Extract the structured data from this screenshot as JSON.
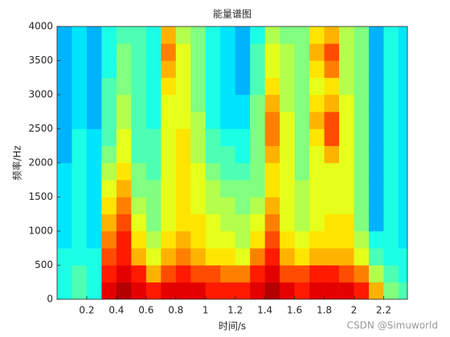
{
  "chart_data": {
    "type": "heatmap",
    "title": "能量谱图",
    "x_label": "时间/s",
    "y_label": "频率/Hz",
    "watermark": "CSDN @Simuworld",
    "colormap": "jet",
    "zlim": [
      0,
      10
    ],
    "xlim": [
      0,
      2.36
    ],
    "ylim": [
      0,
      4000
    ],
    "xticks": [
      0.2,
      0.4,
      0.6,
      0.8,
      1,
      1.2,
      1.4,
      1.6,
      1.8,
      2,
      2.2
    ],
    "yticks": [
      0,
      500,
      1000,
      1500,
      2000,
      2500,
      3000,
      3500,
      4000
    ],
    "x": [
      0.05,
      0.15,
      0.25,
      0.35,
      0.45,
      0.55,
      0.65,
      0.75,
      0.85,
      0.95,
      1.05,
      1.15,
      1.25,
      1.35,
      1.45,
      1.55,
      1.65,
      1.75,
      1.85,
      1.95,
      2.05,
      2.15,
      2.25,
      2.35
    ],
    "y": [
      125,
      375,
      625,
      875,
      1125,
      1375,
      1625,
      1875,
      2125,
      2375,
      2625,
      2875,
      3125,
      3375,
      3625,
      3875
    ],
    "z": [
      [
        4,
        4,
        4,
        3.5,
        3.5,
        3.5,
        3.5,
        3.5,
        3,
        3,
        3,
        3,
        3,
        3,
        3,
        3
      ],
      [
        4.5,
        4.5,
        4,
        4,
        4,
        4,
        4,
        4,
        4,
        4,
        3.5,
        3.5,
        3.5,
        3.5,
        3.5,
        3.5
      ],
      [
        4,
        4,
        4,
        3.5,
        3.5,
        3.5,
        3.5,
        3.5,
        3.5,
        3.5,
        3,
        3,
        3,
        3,
        3,
        3
      ],
      [
        9,
        8.5,
        8,
        7.5,
        7,
        6.5,
        6,
        5.5,
        5,
        4.5,
        4.5,
        4.5,
        4.5,
        4,
        4,
        4
      ],
      [
        9.5,
        9,
        8.5,
        8.5,
        8,
        7.5,
        7,
        6.5,
        6,
        6,
        5.5,
        5.5,
        5,
        5,
        5,
        4.5
      ],
      [
        9,
        8.5,
        7,
        6.5,
        6,
        5.5,
        5,
        5,
        4.5,
        4.5,
        4.5,
        4.5,
        4.5,
        4.5,
        4.5,
        4.5
      ],
      [
        8.5,
        7,
        6,
        5.5,
        5,
        5,
        5,
        4.5,
        4.5,
        4.5,
        4,
        4,
        4,
        4,
        4,
        4
      ],
      [
        9,
        8,
        7,
        6.5,
        6,
        6,
        6,
        6,
        6,
        6,
        6,
        6,
        6.5,
        7,
        7.5,
        7
      ],
      [
        9,
        8.5,
        7.5,
        7,
        6.5,
        6.5,
        6.5,
        6.5,
        6.5,
        6.5,
        6,
        6,
        6,
        6,
        6,
        5.5
      ],
      [
        9,
        8,
        7,
        6.5,
        6.5,
        6,
        6,
        6,
        5.5,
        5.5,
        5.5,
        5,
        5,
        5,
        5,
        5
      ],
      [
        8.5,
        8,
        6.5,
        6,
        6,
        5.5,
        5.5,
        5,
        4.5,
        4.5,
        4,
        4,
        4,
        4,
        4,
        4
      ],
      [
        8.5,
        7.5,
        6.5,
        6,
        5.5,
        5.5,
        5,
        4.5,
        4.5,
        4,
        3.5,
        3.5,
        3.5,
        3.5,
        3.5,
        3.5
      ],
      [
        8.5,
        7.5,
        6,
        5.5,
        5.5,
        5,
        5,
        4.5,
        4,
        4,
        3.5,
        3.5,
        3,
        3,
        3,
        3
      ],
      [
        9,
        8.5,
        7.5,
        6.5,
        6,
        5.5,
        5,
        5,
        5,
        5,
        5,
        5,
        4.5,
        4.5,
        4.5,
        4
      ],
      [
        9.5,
        9,
        8.5,
        8,
        7.5,
        7,
        6.5,
        6.5,
        7,
        7.5,
        7.5,
        7,
        6.5,
        6,
        6,
        5.5
      ],
      [
        9,
        8,
        7,
        6.5,
        6,
        6,
        6,
        6,
        6,
        6,
        6,
        5.5,
        5.5,
        5.5,
        5.5,
        5
      ],
      [
        8.5,
        8,
        6.5,
        6,
        5.5,
        5.5,
        5.5,
        5,
        5,
        5,
        5,
        5,
        5,
        5,
        5,
        5
      ],
      [
        9,
        8.5,
        7,
        6.5,
        6,
        6,
        6,
        6,
        6,
        6.5,
        7,
        6.5,
        6,
        6.5,
        7,
        6.5
      ],
      [
        9,
        8.5,
        7,
        6.5,
        6.5,
        6,
        6,
        6,
        7,
        8,
        8,
        7,
        6.5,
        7.5,
        8,
        7
      ],
      [
        9,
        8,
        7,
        6.5,
        6.5,
        6,
        6,
        6,
        6,
        6,
        6,
        6,
        5.5,
        5.5,
        5.5,
        5.5
      ],
      [
        8.5,
        7.5,
        6,
        5.5,
        5,
        5,
        5,
        5,
        5,
        5,
        5,
        5,
        5,
        5,
        5,
        5
      ],
      [
        7,
        5.5,
        4.5,
        4,
        3,
        3,
        3,
        3,
        3,
        3,
        3,
        3,
        3,
        3,
        3,
        3
      ],
      [
        5,
        4.5,
        4,
        4,
        4,
        4,
        4,
        4,
        4,
        4,
        4,
        4,
        4,
        4,
        4,
        4
      ],
      [
        4.5,
        4,
        4,
        3.5,
        3.5,
        3.5,
        3.5,
        3.5,
        3.5,
        3.5,
        3.5,
        3.5,
        3.5,
        3.5,
        3.5,
        3.5
      ]
    ]
  }
}
